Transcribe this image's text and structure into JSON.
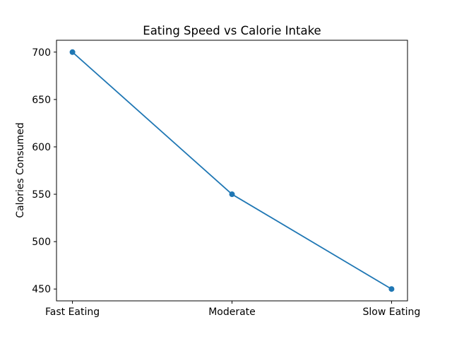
{
  "chart_data": {
    "type": "line",
    "title": "Eating Speed vs Calorie Intake",
    "xlabel": "",
    "ylabel": "Calories Consumed",
    "categories": [
      "Fast Eating",
      "Moderate",
      "Slow Eating"
    ],
    "series": [
      {
        "name": "Calories Consumed",
        "values": [
          700,
          550,
          450
        ]
      }
    ],
    "yticks": [
      450,
      500,
      550,
      600,
      650,
      700
    ],
    "ylim": [
      437.5,
      712.5
    ],
    "xlim": [
      -0.1,
      2.1
    ],
    "grid": false,
    "legend": false,
    "line_color": "#1f77b4",
    "marker": "circle",
    "axis_color": "#000000",
    "background_color": "#ffffff"
  }
}
